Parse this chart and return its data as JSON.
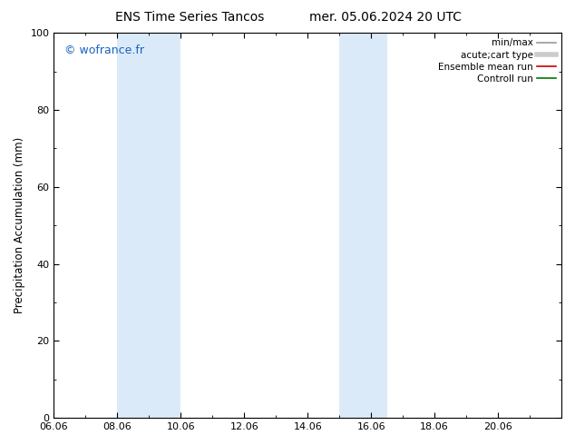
{
  "title_left": "ENS Time Series Tancos",
  "title_right": "mer. 05.06.2024 20 UTC",
  "ylabel": "Precipitation Accumulation (mm)",
  "ylim": [
    0,
    100
  ],
  "yticks": [
    0,
    20,
    40,
    60,
    80,
    100
  ],
  "xlim": [
    0,
    16
  ],
  "xtick_positions": [
    0,
    2,
    4,
    6,
    8,
    10,
    12,
    14
  ],
  "xtick_labels": [
    "06.06",
    "08.06",
    "10.06",
    "12.06",
    "14.06",
    "16.06",
    "18.06",
    "20.06"
  ],
  "shade_regions": [
    {
      "start": 2.0,
      "end": 4.0,
      "color": "#dbeaf8"
    },
    {
      "start": 9.0,
      "end": 10.5,
      "color": "#dbeaf8"
    }
  ],
  "watermark": "© wofrance.fr",
  "watermark_color": "#1565c0",
  "bg_color": "#ffffff",
  "plot_bg": "#ffffff",
  "legend_entries": [
    {
      "label": "min/max",
      "color": "#999999",
      "lw": 1.2
    },
    {
      "label": "acute;cart type",
      "color": "#cccccc",
      "lw": 4.0
    },
    {
      "label": "Ensemble mean run",
      "color": "#cc0000",
      "lw": 1.2
    },
    {
      "label": "Controll run",
      "color": "#007700",
      "lw": 1.2
    }
  ],
  "title_fontsize": 10,
  "tick_fontsize": 8,
  "ylabel_fontsize": 8.5,
  "watermark_fontsize": 9,
  "legend_fontsize": 7.5
}
